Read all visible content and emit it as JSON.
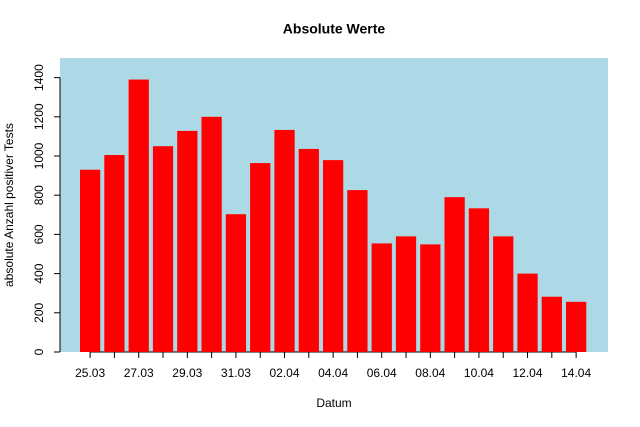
{
  "chart_data": {
    "type": "bar",
    "title": "Absolute Werte",
    "xlabel": "Datum",
    "ylabel": "absolute Anzahl positiver Tests",
    "categories": [
      "25.03",
      null,
      "27.03",
      null,
      "29.03",
      null,
      "31.03",
      null,
      "02.04",
      null,
      "04.04",
      null,
      "06.04",
      null,
      "08.04",
      null,
      "10.04",
      null,
      "12.04",
      null,
      "14.04"
    ],
    "values": [
      930,
      1005,
      1390,
      1050,
      1128,
      1200,
      703,
      964,
      1133,
      1036,
      979,
      826,
      554,
      590,
      549,
      790,
      733,
      590,
      400,
      282,
      256
    ],
    "color": "#ff0000",
    "background": "#add8e6",
    "ylim": [
      0,
      1500
    ],
    "yticks": [
      0,
      200,
      400,
      600,
      800,
      1000,
      1200,
      1400
    ]
  }
}
